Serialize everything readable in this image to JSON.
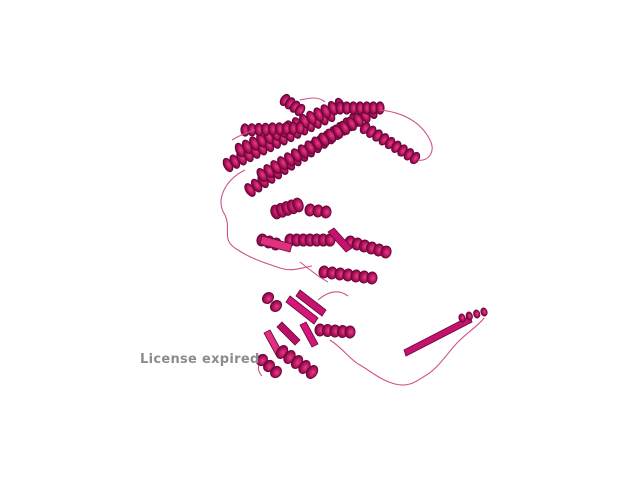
{
  "viewer": {
    "watermark_text": "License expired"
  },
  "render": {
    "background": "#ffffff",
    "primary_color": "#c4126e",
    "dark_color": "#7a0a42",
    "light_color": "#e8407f",
    "coil_color": "#d0508c"
  }
}
